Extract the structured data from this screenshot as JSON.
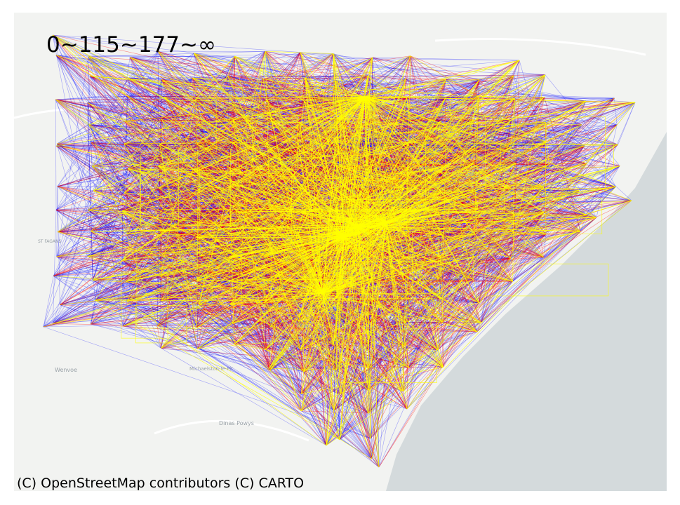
{
  "legend": {
    "text": "0~115~177~∞",
    "thresholds": [
      0,
      115,
      177,
      "∞"
    ],
    "colors": [
      "#0000ff",
      "#ff0000",
      "#ffff00"
    ]
  },
  "attribution": "(C) OpenStreetMap contributors (C) CARTO",
  "basemap": {
    "land_color": "#f2f3f1",
    "sea_color": "#d4dadc",
    "place_labels": [
      "Wenvoe",
      "Michaelston-le-Pit",
      "Dinas Powys",
      "ST FAGANS"
    ]
  }
}
